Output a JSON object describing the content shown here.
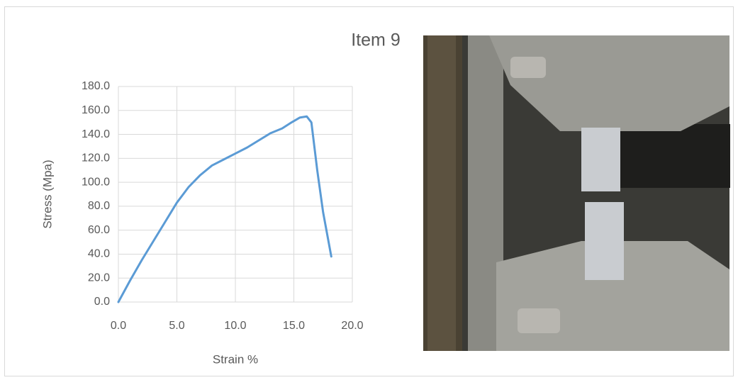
{
  "chart_data": {
    "type": "line",
    "title": "Item 9",
    "xlabel": "Strain %",
    "ylabel": "Stress (Mpa)",
    "x": [
      0,
      1,
      2,
      3,
      4,
      5,
      6,
      7,
      8,
      9,
      10,
      11,
      12,
      13,
      14,
      14.8,
      15.5,
      16.1,
      16.5,
      17,
      17.5,
      18.2
    ],
    "values": [
      0,
      18,
      35,
      51,
      67,
      83,
      96,
      106,
      114,
      119,
      124,
      129,
      135,
      141,
      145,
      150,
      154,
      155,
      150,
      110,
      75,
      38
    ],
    "color": "#5b9bd5",
    "xlim": [
      0,
      20
    ],
    "ylim": [
      0,
      180
    ],
    "xticks": [
      {
        "value": 0,
        "label": "0.0"
      },
      {
        "value": 5,
        "label": "5.0"
      },
      {
        "value": 10,
        "label": "10.0"
      },
      {
        "value": 15,
        "label": "15.0"
      },
      {
        "value": 20,
        "label": "20.0"
      }
    ],
    "yticks": [
      {
        "value": 0,
        "label": "0.0"
      },
      {
        "value": 20,
        "label": "20.0"
      },
      {
        "value": 40,
        "label": "40.0"
      },
      {
        "value": 60,
        "label": "60.0"
      },
      {
        "value": 80,
        "label": "80.0"
      },
      {
        "value": 100,
        "label": "100.0"
      },
      {
        "value": 120,
        "label": "120.0"
      },
      {
        "value": 140,
        "label": "140.0"
      },
      {
        "value": 160,
        "label": "160.0"
      },
      {
        "value": 180,
        "label": "180.0"
      }
    ],
    "grid": true
  }
}
